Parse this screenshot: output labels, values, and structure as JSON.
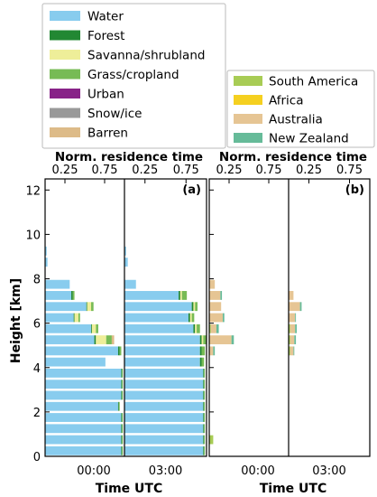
{
  "chart_data": {
    "type": "bar",
    "orientation": "horizontal-stacked",
    "ylabel": "Height [km]",
    "xlabel": "Time UTC",
    "top_xlabel": "Norm. residence time",
    "ylim": [
      0,
      12.5
    ],
    "yticks": [
      "0",
      "2",
      "4",
      "6",
      "8",
      "10",
      "12"
    ],
    "top_xticks": [
      "0.25",
      "0.75"
    ],
    "bottom_xticks": [
      "00:00",
      "03:00"
    ],
    "xlim": [
      0,
      1
    ],
    "heights": [
      0.25,
      0.75,
      1.25,
      1.75,
      2.25,
      2.75,
      3.25,
      3.75,
      4.25,
      4.75,
      5.25,
      5.75,
      6.25,
      6.75,
      7.25,
      7.75,
      8.25,
      8.75,
      9.25,
      9.75,
      10.25
    ],
    "legend_landcover": [
      {
        "name": "Water",
        "color": "#88ccee"
      },
      {
        "name": "Forest",
        "color": "#228833"
      },
      {
        "name": "Savanna/shrubland",
        "color": "#eeee99"
      },
      {
        "name": "Grass/cropland",
        "color": "#77bb55"
      },
      {
        "name": "Urban",
        "color": "#882288"
      },
      {
        "name": "Snow/ice",
        "color": "#999999"
      },
      {
        "name": "Barren",
        "color": "#ddbb88"
      }
    ],
    "legend_continents": [
      {
        "name": "South America",
        "color": "#a8cc55"
      },
      {
        "name": "Africa",
        "color": "#f5d020"
      },
      {
        "name": "Australia",
        "color": "#e6c594"
      },
      {
        "name": "New Zealand",
        "color": "#66bb99"
      }
    ],
    "panels": [
      {
        "label": "(a)",
        "subpanels": [
          {
            "time": "00:00",
            "series": [
              {
                "name": "Water",
                "values": [
                  0.96,
                  0.96,
                  0.96,
                  0.96,
                  0.92,
                  0.96,
                  0.96,
                  0.96,
                  0.76,
                  0.92,
                  0.62,
                  0.58,
                  0.36,
                  0.52,
                  0.33,
                  0.31,
                  0.0,
                  0.03,
                  0.02,
                  0.0,
                  0.0
                ]
              },
              {
                "name": "Forest",
                "values": [
                  0.01,
                  0.01,
                  0.01,
                  0.01,
                  0.01,
                  0.01,
                  0.01,
                  0.01,
                  0.0,
                  0.02,
                  0.02,
                  0.01,
                  0.01,
                  0.01,
                  0.02,
                  0.0,
                  0.0,
                  0.0,
                  0.0,
                  0.0,
                  0.0
                ]
              },
              {
                "name": "Savanna/shrubland",
                "values": [
                  0.0,
                  0.0,
                  0.0,
                  0.0,
                  0.0,
                  0.0,
                  0.0,
                  0.0,
                  0.0,
                  0.0,
                  0.13,
                  0.05,
                  0.05,
                  0.05,
                  0.0,
                  0.0,
                  0.0,
                  0.0,
                  0.0,
                  0.0,
                  0.0
                ]
              },
              {
                "name": "Grass/cropland",
                "values": [
                  0.01,
                  0.01,
                  0.01,
                  0.01,
                  0.01,
                  0.01,
                  0.01,
                  0.01,
                  0.0,
                  0.02,
                  0.07,
                  0.03,
                  0.02,
                  0.03,
                  0.02,
                  0.0,
                  0.0,
                  0.0,
                  0.0,
                  0.0,
                  0.0
                ]
              },
              {
                "name": "Barren",
                "values": [
                  0.0,
                  0.0,
                  0.0,
                  0.0,
                  0.0,
                  0.0,
                  0.0,
                  0.0,
                  0.0,
                  0.0,
                  0.03,
                  0.0,
                  0.0,
                  0.0,
                  0.0,
                  0.0,
                  0.0,
                  0.0,
                  0.0,
                  0.0,
                  0.0
                ]
              }
            ]
          },
          {
            "time": "03:00",
            "series": [
              {
                "name": "Water",
                "values": [
                  0.96,
                  0.96,
                  0.96,
                  0.96,
                  0.96,
                  0.96,
                  0.96,
                  0.96,
                  0.92,
                  0.92,
                  0.92,
                  0.84,
                  0.78,
                  0.82,
                  0.66,
                  0.14,
                  0.0,
                  0.04,
                  0.02,
                  0.0,
                  0.0
                ]
              },
              {
                "name": "Forest",
                "values": [
                  0.01,
                  0.01,
                  0.01,
                  0.01,
                  0.01,
                  0.01,
                  0.01,
                  0.01,
                  0.02,
                  0.02,
                  0.02,
                  0.02,
                  0.02,
                  0.02,
                  0.02,
                  0.0,
                  0.0,
                  0.0,
                  0.0,
                  0.0,
                  0.0
                ]
              },
              {
                "name": "Savanna/shrubland",
                "values": [
                  0.0,
                  0.0,
                  0.0,
                  0.0,
                  0.0,
                  0.0,
                  0.0,
                  0.0,
                  0.0,
                  0.0,
                  0.02,
                  0.02,
                  0.02,
                  0.02,
                  0.02,
                  0.0,
                  0.0,
                  0.0,
                  0.0,
                  0.0,
                  0.0
                ]
              },
              {
                "name": "Grass/cropland",
                "values": [
                  0.01,
                  0.01,
                  0.01,
                  0.01,
                  0.01,
                  0.01,
                  0.01,
                  0.01,
                  0.03,
                  0.04,
                  0.04,
                  0.04,
                  0.03,
                  0.03,
                  0.06,
                  0.0,
                  0.0,
                  0.0,
                  0.0,
                  0.0,
                  0.0
                ]
              }
            ]
          }
        ]
      },
      {
        "label": "(b)",
        "subpanels": [
          {
            "time": "00:00",
            "series": [
              {
                "name": "South America",
                "values": [
                  0.0,
                  0.05,
                  0.0,
                  0.0,
                  0.0,
                  0.0,
                  0.0,
                  0.0,
                  0.0,
                  0.0,
                  0.0,
                  0.02,
                  0.0,
                  0.0,
                  0.0,
                  0.0,
                  0.0,
                  0.0,
                  0.0,
                  0.0,
                  0.0
                ]
              },
              {
                "name": "Australia",
                "values": [
                  0.0,
                  0.0,
                  0.0,
                  0.0,
                  0.0,
                  0.0,
                  0.0,
                  0.0,
                  0.0,
                  0.05,
                  0.28,
                  0.07,
                  0.17,
                  0.15,
                  0.14,
                  0.07,
                  0.0,
                  0.0,
                  0.0,
                  0.0,
                  0.0
                ]
              },
              {
                "name": "New Zealand",
                "values": [
                  0.0,
                  0.0,
                  0.0,
                  0.0,
                  0.0,
                  0.0,
                  0.0,
                  0.0,
                  0.0,
                  0.02,
                  0.03,
                  0.03,
                  0.02,
                  0.0,
                  0.02,
                  0.0,
                  0.0,
                  0.0,
                  0.0,
                  0.0,
                  0.0
                ]
              }
            ]
          },
          {
            "time": "03:00",
            "series": [
              {
                "name": "South America",
                "values": [
                  0.0,
                  0.0,
                  0.0,
                  0.0,
                  0.0,
                  0.0,
                  0.0,
                  0.0,
                  0.0,
                  0.02,
                  0.02,
                  0.02,
                  0.0,
                  0.0,
                  0.0,
                  0.0,
                  0.0,
                  0.0,
                  0.0,
                  0.0,
                  0.0
                ]
              },
              {
                "name": "Australia",
                "values": [
                  0.0,
                  0.0,
                  0.0,
                  0.0,
                  0.0,
                  0.0,
                  0.0,
                  0.0,
                  0.0,
                  0.04,
                  0.05,
                  0.06,
                  0.08,
                  0.14,
                  0.06,
                  0.0,
                  0.0,
                  0.0,
                  0.0,
                  0.0,
                  0.0
                ]
              },
              {
                "name": "New Zealand",
                "values": [
                  0.0,
                  0.0,
                  0.0,
                  0.0,
                  0.0,
                  0.0,
                  0.0,
                  0.0,
                  0.0,
                  0.01,
                  0.02,
                  0.02,
                  0.01,
                  0.02,
                  0.0,
                  0.0,
                  0.0,
                  0.0,
                  0.0,
                  0.0,
                  0.0
                ]
              }
            ]
          }
        ]
      }
    ]
  }
}
